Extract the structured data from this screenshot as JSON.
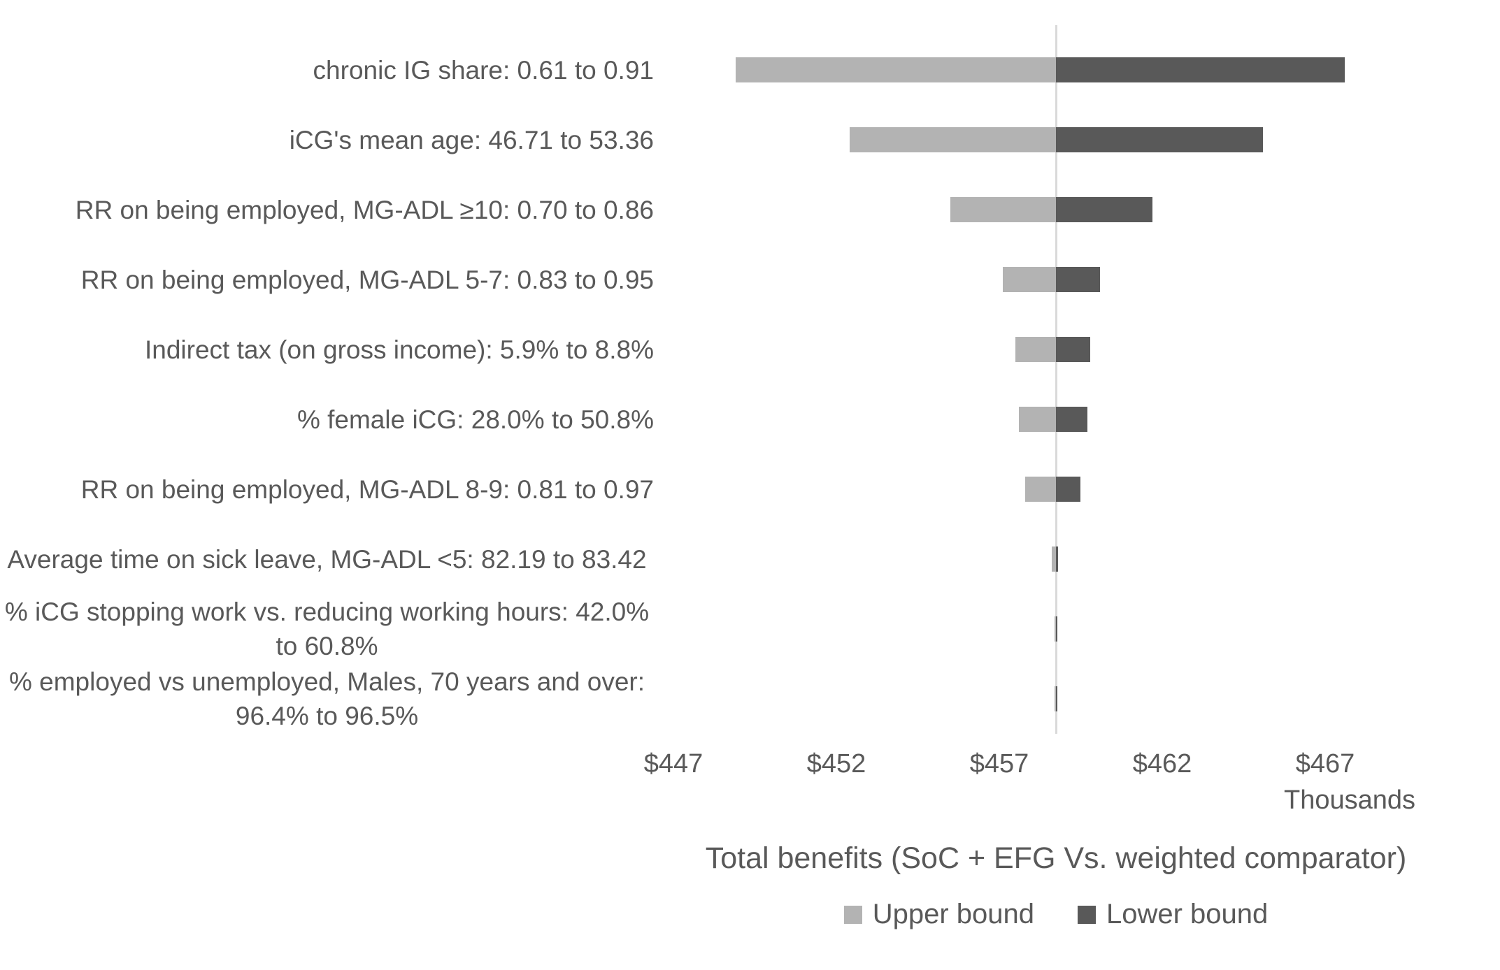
{
  "chart_data": {
    "type": "bar",
    "subtype": "tornado-sensitivity",
    "orientation": "horizontal",
    "title": "",
    "xlabel": "Total benefits (SoC + EFG Vs. weighted comparator)",
    "axis_unit": "Thousands",
    "x_ticks": [
      "$447",
      "$452",
      "$457",
      "$462",
      "$467"
    ],
    "x_tick_values": [
      447,
      452,
      457,
      462,
      467
    ],
    "xlim": [
      446.7,
      471.0
    ],
    "baseline_value": 458.74,
    "grid": false,
    "baseline_gridline": true,
    "legend_position": "bottom",
    "categories": [
      "chronic IG share: 0.61 to 0.91",
      "iCG's mean age: 46.71 to 53.36",
      "RR on being employed, MG-ADL ≥10: 0.70 to 0.86",
      "RR on being employed, MG-ADL 5-7: 0.83 to 0.95",
      "Indirect tax (on gross income): 5.9% to 8.8%",
      "% female iCG: 28.0% to 50.8%",
      "RR on being employed, MG-ADL 8-9: 0.81 to 0.97",
      "Average time on sick leave, MG-ADL <5: 82.19 to 83.42",
      "% iCG  stopping work vs. reducing working hours: 42.0% to 60.8%",
      "% employed vs unemployed, Males, 70 years and over: 96.4% to 96.5%"
    ],
    "series": [
      {
        "name": "Upper bound",
        "color": "#b3b3b3",
        "values": [
          448.9,
          452.4,
          455.5,
          457.1,
          457.5,
          457.6,
          457.8,
          458.6,
          458.7,
          458.7
        ]
      },
      {
        "name": "Lower bound",
        "color": "#595959",
        "values": [
          467.6,
          465.1,
          461.7,
          460.1,
          459.8,
          459.7,
          459.5,
          458.8,
          458.78,
          458.78
        ]
      }
    ]
  },
  "colors": {
    "text": "#595959",
    "gridline": "#d9d9d9",
    "background": "#ffffff"
  }
}
